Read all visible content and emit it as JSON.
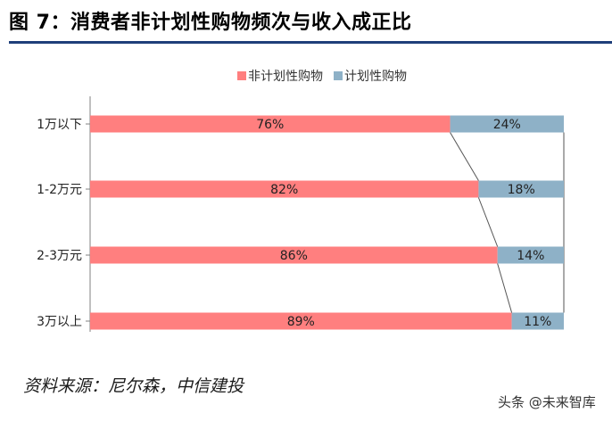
{
  "figure": {
    "title": "图 7：消费者非计划性购物频次与收入成正比"
  },
  "chart_data": {
    "type": "bar",
    "orientation": "horizontal",
    "stacked": "percent",
    "categories": [
      "1万以下",
      "1-2万元",
      "2-3万元",
      "3万以上"
    ],
    "series": [
      {
        "name": "非计划性购物",
        "color": "#ff7f7f",
        "values": [
          76,
          82,
          86,
          89
        ],
        "labels": [
          "76%",
          "82%",
          "86%",
          "89%"
        ]
      },
      {
        "name": "计划性购物",
        "color": "#8eb1c7",
        "values": [
          24,
          18,
          14,
          11
        ],
        "labels": [
          "24%",
          "18%",
          "14%",
          "11%"
        ]
      }
    ],
    "xlim": [
      0,
      100
    ],
    "legend": "top-center",
    "series_lines": true,
    "grid": false
  },
  "source": "资料来源：尼尔森，中信建投",
  "watermark": "头条 @未来智库"
}
